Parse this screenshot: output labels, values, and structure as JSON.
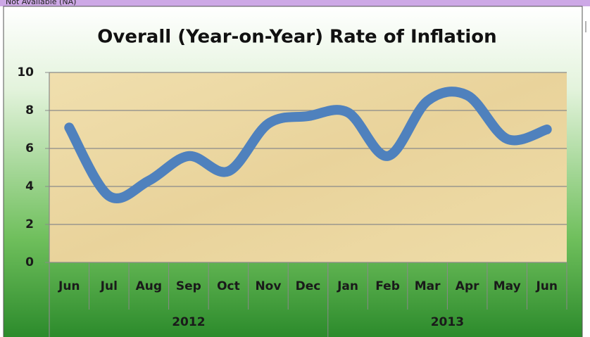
{
  "header_note": "Not Available (NA)",
  "chart_data": {
    "type": "line",
    "title": "Overall (Year-on-Year) Rate of Inflation",
    "categories": [
      "Jun",
      "Jul",
      "Aug",
      "Sep",
      "Oct",
      "Nov",
      "Dec",
      "Jan",
      "Feb",
      "Mar",
      "Apr",
      "May",
      "Jun"
    ],
    "groups": [
      {
        "label": "2012",
        "count": 7
      },
      {
        "label": "2013",
        "count": 6
      }
    ],
    "series": [
      {
        "name": "Inflation",
        "color": "#4f81bd",
        "values": [
          7.1,
          3.5,
          4.3,
          5.6,
          4.8,
          7.3,
          7.7,
          7.9,
          5.6,
          8.5,
          8.8,
          6.5,
          7.0
        ]
      }
    ],
    "ylim": [
      0,
      10
    ],
    "yticks": [
      0,
      2,
      4,
      6,
      8,
      10
    ],
    "grid": true,
    "smooth": true
  }
}
